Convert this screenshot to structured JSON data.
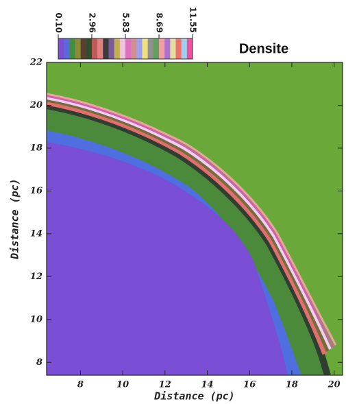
{
  "chart_data": {
    "type": "contour",
    "title": "Densite",
    "x_label": "Distance (pc)",
    "y_label": "Distance (pc)",
    "xlim": [
      6.4,
      20.4
    ],
    "xticks": [
      8,
      10,
      12,
      14,
      16,
      18,
      20
    ],
    "ylim": [
      7.4,
      22
    ],
    "yticks": [
      8,
      10,
      12,
      14,
      16,
      18,
      20,
      22
    ],
    "colorbar_lim": [
      0.1,
      11.55
    ],
    "colorbar_ticks": [
      {
        "value": 0.1,
        "label": "0.10"
      },
      {
        "value": 2.96,
        "label": "2.96"
      },
      {
        "value": 5.83,
        "label": "5.83"
      },
      {
        "value": 8.69,
        "label": "8.69"
      },
      {
        "value": 11.55,
        "label": "11.55"
      }
    ],
    "colorbar_colors": [
      "#7b4fd0",
      "#5a6ad8",
      "#3f8f3f",
      "#8a8a3a",
      "#5a3f2f",
      "#2f4f2f",
      "#c05a5a",
      "#e08080",
      "#3a3a3a",
      "#7a5a9a",
      "#c0b050",
      "#f0c0e0",
      "#e070c0",
      "#d09090",
      "#a0a0f0",
      "#f0e080",
      "#909090",
      "#60a060",
      "#f0a0a0",
      "#b070d0",
      "#e0e0a0",
      "#f07070",
      "#a0d0f0",
      "#f050a0"
    ]
  }
}
